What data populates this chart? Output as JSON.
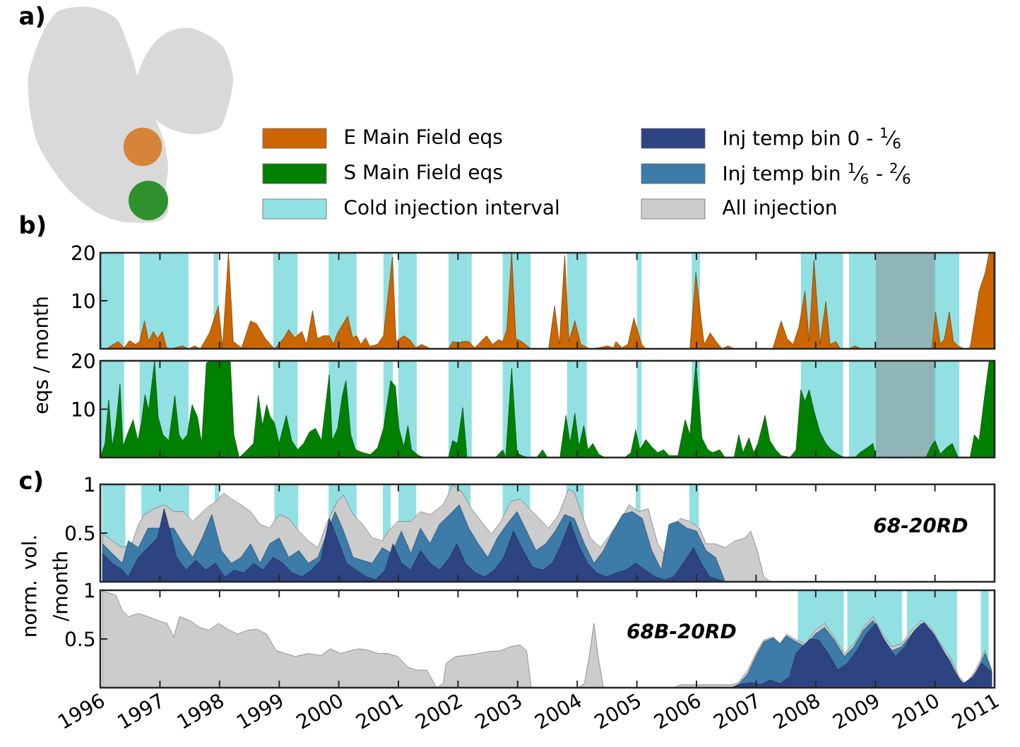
{
  "chart_data": [
    {
      "type": "area",
      "title": "b)",
      "ylabel": "eqs / month",
      "annotations": [
        "a)"
      ],
      "xlim": [
        1996,
        2011
      ],
      "xticks": [
        1996,
        1997,
        1998,
        1999,
        2000,
        2001,
        2002,
        2003,
        2004,
        2005,
        2006,
        2007,
        2008,
        2009,
        2010,
        2011
      ],
      "ylim": [
        0,
        20
      ],
      "yticks": [
        10,
        20
      ],
      "tick_labels": "y",
      "legend": "top",
      "bands": [
        {
          "axis": "x",
          "from": 1996.0,
          "to": 1996.4,
          "color": "#92e0e2"
        },
        {
          "axis": "x",
          "from": 1996.66,
          "to": 1997.48,
          "color": "#92e0e2"
        },
        {
          "axis": "x",
          "from": 1997.9,
          "to": 1997.98,
          "color": "#92e0e2"
        },
        {
          "axis": "x",
          "from": 1998.9,
          "to": 1999.31,
          "color": "#92e0e2"
        },
        {
          "axis": "x",
          "from": 1999.83,
          "to": 2000.3,
          "color": "#92e0e2"
        },
        {
          "axis": "x",
          "from": 2000.75,
          "to": 2000.91,
          "color": "#92e0e2"
        },
        {
          "axis": "x",
          "from": 2001.0,
          "to": 2001.31,
          "color": "#92e0e2"
        },
        {
          "axis": "x",
          "from": 2001.84,
          "to": 2002.23,
          "color": "#92e0e2"
        },
        {
          "axis": "x",
          "from": 2002.75,
          "to": 2003.22,
          "color": "#92e0e2"
        },
        {
          "axis": "x",
          "from": 2003.83,
          "to": 2004.16,
          "color": "#92e0e2"
        },
        {
          "axis": "x",
          "from": 2005.0,
          "to": 2005.08,
          "color": "#92e0e2"
        },
        {
          "axis": "x",
          "from": 2005.92,
          "to": 2006.06,
          "color": "#92e0e2"
        },
        {
          "axis": "x",
          "from": 2007.75,
          "to": 2008.46,
          "color": "#92e0e2"
        },
        {
          "axis": "x",
          "from": 2008.56,
          "to": 2009.52,
          "color": "#92e0e2"
        },
        {
          "axis": "x",
          "from": 2009.58,
          "to": 2010.41,
          "color": "#92e0e2"
        },
        {
          "axis": "x",
          "from": 2009.01,
          "to": 2010.0,
          "color": "#8fb5b7"
        }
      ],
      "series": [
        {
          "name": "E Main Field eqs",
          "color": "#cc6600",
          "x": [
            1996.0,
            1996.1,
            1996.3,
            1996.4,
            1996.49,
            1996.59,
            1996.66,
            1996.74,
            1996.81,
            1996.89,
            1996.96,
            1997.04,
            1997.11,
            1997.19,
            1997.38,
            1997.48,
            1997.58,
            1997.68,
            1997.83,
            1997.98,
            1998.05,
            1998.15,
            1998.23,
            1998.37,
            1998.52,
            1998.62,
            1998.77,
            1998.92,
            1999.07,
            1999.16,
            1999.26,
            1999.38,
            1999.46,
            1999.56,
            1999.64,
            1999.74,
            1999.84,
            1999.91,
            1999.98,
            2000.15,
            2000.23,
            2000.3,
            2000.37,
            2000.45,
            2000.52,
            2000.65,
            2000.75,
            2000.9,
            2000.96,
            2001.09,
            2001.19,
            2001.29,
            2001.39,
            2001.54,
            2001.84,
            2001.91,
            2002.01,
            2002.08,
            2002.18,
            2002.28,
            2002.48,
            2002.58,
            2002.68,
            2002.75,
            2002.82,
            2002.9,
            2002.97,
            2003.07,
            2003.22,
            2003.52,
            2003.62,
            2003.7,
            2003.79,
            2003.86,
            2003.96,
            2004.06,
            2004.21,
            2004.36,
            2004.51,
            2004.61,
            2004.65,
            2004.75,
            2004.85,
            2004.95,
            2005.08,
            2005.15,
            2005.89,
            2005.99,
            2006.08,
            2006.13,
            2006.23,
            2006.33,
            2006.43,
            2006.53,
            2006.63,
            2007.28,
            2007.42,
            2007.52,
            2007.62,
            2007.72,
            2007.82,
            2007.89,
            2007.97,
            2008.07,
            2008.17,
            2008.24,
            2008.34,
            2008.41,
            2008.56,
            2008.66,
            2008.76,
            2009.95,
            2010.01,
            2010.09,
            2010.16,
            2010.24,
            2010.31,
            2010.39,
            2010.49,
            2010.59,
            2010.74,
            2010.84,
            2010.91,
            2010.99
          ],
          "values": [
            0,
            0,
            1.5,
            0.2,
            1.7,
            0.9,
            1.5,
            5.8,
            1.5,
            3.6,
            2.1,
            3.6,
            0.2,
            0,
            0.6,
            0,
            0.6,
            0,
            3.3,
            8.9,
            0.2,
            20,
            1.5,
            0.2,
            5.8,
            5.2,
            2.1,
            0,
            2.1,
            4.0,
            2.3,
            3.6,
            0.9,
            7.9,
            2.1,
            2.7,
            2.7,
            0.9,
            3.3,
            6.8,
            2.3,
            2.7,
            0.9,
            2.3,
            0.5,
            0.9,
            2.7,
            19.1,
            1.5,
            2.7,
            1.9,
            0.2,
            0.9,
            0,
            0,
            1.5,
            1.2,
            1.5,
            1.5,
            0.2,
            2.7,
            0.9,
            1.9,
            1.5,
            4.0,
            20,
            2.1,
            1.5,
            0,
            0,
            8.9,
            0.9,
            19.4,
            1.5,
            5.8,
            0.9,
            0,
            0.2,
            0.6,
            0.2,
            1.5,
            0.2,
            0.9,
            6.4,
            0.9,
            0,
            0,
            15.9,
            5.8,
            0.9,
            3.3,
            1.5,
            0,
            0.6,
            0,
            0,
            5.8,
            2.1,
            0.9,
            4.6,
            12.0,
            1.5,
            18.4,
            0.9,
            9.8,
            0.9,
            1.5,
            0,
            0,
            0.6,
            0,
            0,
            7.7,
            0.9,
            2.1,
            7.7,
            1.5,
            0.6,
            0,
            0.2,
            12.0,
            15.7,
            20,
            20
          ]
        }
      ]
    },
    {
      "type": "area",
      "xlim": [
        1996,
        2011
      ],
      "xticks": [
        1996,
        1997,
        1998,
        1999,
        2000,
        2001,
        2002,
        2003,
        2004,
        2005,
        2006,
        2007,
        2008,
        2009,
        2010,
        2011
      ],
      "ylim": [
        0,
        20
      ],
      "yticks": [
        10,
        20
      ],
      "tick_labels": "y",
      "legend": "top",
      "bands": [
        {
          "axis": "x",
          "from": 1996.0,
          "to": 1996.4,
          "color": "#92e0e2",
          "label": "Cold injection interval"
        },
        {
          "axis": "x",
          "from": 1996.66,
          "to": 1997.48,
          "color": "#92e0e2"
        },
        {
          "axis": "x",
          "from": 1998.9,
          "to": 1999.31,
          "color": "#92e0e2"
        },
        {
          "axis": "x",
          "from": 1999.83,
          "to": 2000.3,
          "color": "#92e0e2"
        },
        {
          "axis": "x",
          "from": 2000.75,
          "to": 2000.91,
          "color": "#92e0e2"
        },
        {
          "axis": "x",
          "from": 2001.0,
          "to": 2001.31,
          "color": "#92e0e2"
        },
        {
          "axis": "x",
          "from": 2001.84,
          "to": 2002.23,
          "color": "#92e0e2"
        },
        {
          "axis": "x",
          "from": 2002.75,
          "to": 2003.22,
          "color": "#92e0e2"
        },
        {
          "axis": "x",
          "from": 2003.83,
          "to": 2004.16,
          "color": "#92e0e2"
        },
        {
          "axis": "x",
          "from": 2005.0,
          "to": 2005.08,
          "color": "#92e0e2"
        },
        {
          "axis": "x",
          "from": 2005.92,
          "to": 2006.06,
          "color": "#92e0e2"
        },
        {
          "axis": "x",
          "from": 2007.75,
          "to": 2008.46,
          "color": "#92e0e2"
        },
        {
          "axis": "x",
          "from": 2008.56,
          "to": 2009.52,
          "color": "#92e0e2"
        },
        {
          "axis": "x",
          "from": 2009.58,
          "to": 2010.41,
          "color": "#92e0e2"
        },
        {
          "axis": "x",
          "from": 2009.01,
          "to": 2010.0,
          "color": "#8fb5b7"
        }
      ],
      "series": [
        {
          "name": "S Main Field eqs",
          "color": "#008000",
          "x": [
            1996.0,
            1996.08,
            1996.14,
            1996.2,
            1996.26,
            1996.33,
            1996.38,
            1996.45,
            1996.55,
            1996.63,
            1996.69,
            1996.75,
            1996.81,
            1996.91,
            1996.97,
            1997.05,
            1997.15,
            1997.25,
            1997.32,
            1997.38,
            1997.46,
            1997.54,
            1997.63,
            1997.7,
            1997.78,
            1997.86,
            1998.18,
            1998.24,
            1998.33,
            1998.42,
            1998.57,
            1998.65,
            1998.72,
            1998.79,
            1998.85,
            1998.92,
            1999.0,
            1999.12,
            1999.21,
            1999.31,
            1999.41,
            1999.51,
            1999.61,
            1999.71,
            1999.84,
            1999.89,
            1999.98,
            2000.06,
            2000.12,
            2000.2,
            2000.28,
            2000.4,
            2000.53,
            2000.65,
            2000.75,
            2000.87,
            2000.95,
            2001.01,
            2001.09,
            2001.16,
            2001.22,
            2001.34,
            2001.44,
            2001.84,
            2001.91,
            2001.99,
            2002.08,
            2002.15,
            2002.63,
            2002.75,
            2002.8,
            2002.9,
            2002.99,
            2003.07,
            2003.17,
            2003.32,
            2003.42,
            2003.5,
            2003.71,
            2003.81,
            2003.88,
            2003.96,
            2004.03,
            2004.11,
            2004.18,
            2004.26,
            2004.36,
            2004.46,
            2004.8,
            2004.9,
            2004.98,
            2005.05,
            2005.15,
            2005.25,
            2005.35,
            2005.45,
            2005.54,
            2005.69,
            2005.81,
            2005.89,
            2005.99,
            2006.09,
            2006.19,
            2006.27,
            2006.39,
            2006.48,
            2006.63,
            2006.71,
            2006.78,
            2006.88,
            2006.96,
            2007.03,
            2007.15,
            2007.23,
            2007.33,
            2007.42,
            2007.57,
            2007.67,
            2007.75,
            2007.82,
            2007.89,
            2007.97,
            2008.07,
            2008.17,
            2008.26,
            2008.38,
            2008.48,
            2008.66,
            2008.74,
            2008.86,
            2008.96,
            2009.01,
            2009.85,
            2009.93,
            2010.0,
            2010.09,
            2010.19,
            2010.29,
            2010.39,
            2010.59,
            2010.66,
            2010.74,
            2010.84,
            2010.91,
            2010.99
          ],
          "values": [
            0,
            2.9,
            11.9,
            2.2,
            6.6,
            15.2,
            2.2,
            4.7,
            7.8,
            3.5,
            7.2,
            13.0,
            9.7,
            19.9,
            8.4,
            4.7,
            3.5,
            12.8,
            4.7,
            3.5,
            4.7,
            10.9,
            8.4,
            2.9,
            19.6,
            20,
            20,
            4.7,
            0,
            1.0,
            2.9,
            12.8,
            6.6,
            10.9,
            8.4,
            7.2,
            2.9,
            8.7,
            3.5,
            1.6,
            2.9,
            5.3,
            6.0,
            3.5,
            17.1,
            3.5,
            6.0,
            12.8,
            15.9,
            4.7,
            1.6,
            1.0,
            0.6,
            2.0,
            6.0,
            15.9,
            14.7,
            6.0,
            2.2,
            6.6,
            1.6,
            0.4,
            0,
            0,
            3.5,
            2.9,
            10.3,
            0,
            0,
            1.6,
            0,
            18.4,
            1.0,
            0.4,
            0,
            0,
            1.6,
            0,
            0,
            8.7,
            2.9,
            9.1,
            2.2,
            6.6,
            1.6,
            2.9,
            0.7,
            0,
            0,
            1.0,
            5.7,
            1.6,
            3.7,
            2.2,
            1.0,
            1.6,
            0.4,
            0.4,
            7.8,
            4.7,
            19.9,
            4.1,
            1.6,
            1.0,
            1.6,
            0,
            0,
            4.7,
            1.0,
            4.1,
            1.0,
            2.9,
            8.7,
            3.5,
            1.6,
            0.4,
            0,
            1.6,
            14.0,
            11.6,
            14.0,
            9.7,
            5.3,
            2.9,
            1.6,
            0.6,
            0,
            0,
            1.0,
            2.0,
            2.9,
            0,
            0,
            2.2,
            3.5,
            0.7,
            2.0,
            2.9,
            0,
            0,
            4.7,
            3.5,
            13.4,
            20,
            20
          ]
        }
      ]
    },
    {
      "type": "area",
      "title": "c)",
      "ylabel": "norm. vol. /month",
      "annotations": [
        "68-20RD"
      ],
      "xlim": [
        1996,
        2011
      ],
      "xticks": [
        1996,
        1997,
        1998,
        1999,
        2000,
        2001,
        2002,
        2003,
        2004,
        2005,
        2006,
        2007,
        2008,
        2009,
        2010,
        2011
      ],
      "ylim": [
        0,
        1
      ],
      "yticks": [
        0.5,
        1
      ],
      "tick_labels": "y",
      "legend": "top",
      "bands": [
        {
          "axis": "x",
          "from": 1996.03,
          "to": 1996.42,
          "color": "#92e0e2"
        },
        {
          "axis": "x",
          "from": 1996.69,
          "to": 1997.49,
          "color": "#92e0e2"
        },
        {
          "axis": "x",
          "from": 1997.92,
          "to": 1998.0,
          "color": "#92e0e2"
        },
        {
          "axis": "x",
          "from": 1998.92,
          "to": 1999.32,
          "color": "#92e0e2"
        },
        {
          "axis": "x",
          "from": 1999.83,
          "to": 2000.3,
          "color": "#92e0e2"
        },
        {
          "axis": "x",
          "from": 2000.74,
          "to": 2000.87,
          "color": "#92e0e2"
        },
        {
          "axis": "x",
          "from": 2001.0,
          "to": 2001.3,
          "color": "#92e0e2"
        },
        {
          "axis": "x",
          "from": 2001.84,
          "to": 2002.21,
          "color": "#92e0e2"
        },
        {
          "axis": "x",
          "from": 2002.75,
          "to": 2003.21,
          "color": "#92e0e2"
        },
        {
          "axis": "x",
          "from": 2003.82,
          "to": 2004.11,
          "color": "#92e0e2"
        },
        {
          "axis": "x",
          "from": 2004.98,
          "to": 2005.06,
          "color": "#92e0e2"
        },
        {
          "axis": "x",
          "from": 2005.88,
          "to": 2006.04,
          "color": "#92e0e2"
        }
      ],
      "series": [
        {
          "name": "Inj temp bin 0 - $^{1}$⁄$_{6}$",
          "color": "#2e4482",
          "x": [
            1996.04,
            1996.2,
            1996.37,
            1996.47,
            1996.64,
            1996.8,
            1996.96,
            1997.07,
            1997.17,
            1997.28,
            1997.44,
            1997.6,
            1997.77,
            1997.93,
            1998.09,
            1998.25,
            1998.41,
            1998.57,
            1998.73,
            1998.9,
            1999.06,
            1999.22,
            1999.38,
            1999.54,
            1999.7,
            1999.84,
            1999.97,
            2000.13,
            2000.29,
            2000.46,
            2000.62,
            2000.78,
            2000.91,
            2001.05,
            2001.21,
            2001.37,
            2001.53,
            2001.69,
            2001.86,
            2001.98,
            2002.12,
            2002.29,
            2002.45,
            2002.61,
            2002.77,
            2002.93,
            2003.09,
            2003.25,
            2003.42,
            2003.58,
            2003.74,
            2003.88,
            2004.01,
            2004.17,
            2004.33,
            2004.49,
            2004.65,
            2004.82,
            2004.98,
            2005.14,
            2005.3,
            2005.46,
            2005.62,
            2005.78,
            2005.95,
            2006.08,
            2006.22,
            2006.38,
            2006.48
          ],
          "values": [
            0.29,
            0.19,
            0.12,
            0.05,
            0.25,
            0.35,
            0.45,
            0.75,
            0.52,
            0.25,
            0.12,
            0.22,
            0.12,
            0.19,
            0.05,
            0.12,
            0.09,
            0.19,
            0.12,
            0.25,
            0.19,
            0.09,
            0.05,
            0.12,
            0.22,
            0.65,
            0.45,
            0.19,
            0.12,
            0.05,
            0.02,
            0.12,
            0.39,
            0.19,
            0.12,
            0.32,
            0.19,
            0.12,
            0.25,
            0.39,
            0.19,
            0.09,
            0.05,
            0.12,
            0.25,
            0.52,
            0.32,
            0.15,
            0.12,
            0.19,
            0.39,
            0.62,
            0.39,
            0.19,
            0.09,
            0.05,
            0.09,
            0.12,
            0.19,
            0.12,
            0.05,
            0.02,
            0.05,
            0.19,
            0.35,
            0.19,
            0.05,
            0.02,
            0
          ]
        },
        {
          "name": "Inj temp bin $^{1}$⁄$_{6}$ - $^{2}$⁄$_{6}$",
          "color": "#3d7ba8",
          "x": [
            1996.04,
            1996.2,
            1996.37,
            1996.47,
            1996.64,
            1996.8,
            1996.96,
            1997.23,
            1997.39,
            1997.55,
            1997.71,
            1997.87,
            1998.03,
            1998.2,
            1998.36,
            1998.52,
            1998.68,
            1998.84,
            1999.0,
            1999.16,
            1999.33,
            1999.49,
            1999.65,
            1999.81,
            1999.94,
            2000.08,
            2000.24,
            2000.4,
            2000.56,
            2000.73,
            2000.89,
            2001.05,
            2001.21,
            2001.37,
            2001.53,
            2001.69,
            2001.86,
            2002.02,
            2002.18,
            2002.34,
            2002.5,
            2002.66,
            2002.82,
            2002.99,
            2003.15,
            2003.31,
            2003.47,
            2003.63,
            2003.79,
            2003.95,
            2004.12,
            2004.28,
            2004.44,
            2004.6,
            2004.76,
            2004.92,
            2005.09,
            2005.25,
            2005.41,
            2005.54,
            2005.68,
            2005.84,
            2006.0,
            2006.16,
            2006.32,
            2006.48
          ],
          "values": [
            0.39,
            0.29,
            0.19,
            0.42,
            0.35,
            0.55,
            null,
            0.55,
            0.39,
            0.25,
            0.45,
            0.69,
            0.32,
            0.19,
            0.25,
            0.39,
            0.19,
            0.39,
            0.45,
            0.25,
            0.32,
            0.19,
            0.25,
            null,
            0.72,
            0.52,
            0.25,
            0.22,
            0.19,
            0.35,
            0.29,
            0.52,
            0.29,
            0.55,
            0.39,
            0.59,
            0.69,
            0.79,
            0.55,
            0.39,
            0.25,
            0.45,
            0.59,
            0.72,
            0.52,
            0.32,
            0.39,
            0.52,
            0.69,
            0.65,
            0.39,
            0.19,
            0.32,
            0.52,
            0.69,
            0.72,
            0.65,
            0.32,
            0.12,
            0.59,
            0.62,
            0.55,
            0.52,
            0.32,
            0.25,
            0
          ]
        },
        {
          "name": "All injection",
          "color": "#cccccc",
          "x": [
            1996.04,
            1996.2,
            1996.37,
            1996.53,
            1996.64,
            1996.74,
            1996.9,
            1997.07,
            1997.23,
            1997.39,
            1997.55,
            1997.77,
            1997.93,
            1998.07,
            1998.2,
            1998.36,
            1998.52,
            1998.68,
            1998.84,
            1999.0,
            1999.16,
            1999.33,
            1999.49,
            1999.65,
            1999.81,
            1999.97,
            2000.08,
            2000.24,
            2000.4,
            2000.56,
            2000.73,
            2000.83,
            2000.99,
            2001.21,
            2001.37,
            2001.53,
            2001.75,
            2001.91,
            2002.07,
            2002.23,
            2002.39,
            2002.56,
            2002.72,
            2002.88,
            2003.04,
            2003.2,
            2003.36,
            2003.52,
            2003.69,
            2003.85,
            2003.95,
            2004.06,
            2004.22,
            2004.39,
            2004.55,
            2004.71,
            2004.87,
            2005.03,
            2005.19,
            2005.35,
            2005.46,
            2005.57,
            2005.73,
            2005.89,
            2006.05,
            2006.16,
            2006.32,
            2006.48,
            2006.65,
            2006.81,
            2006.91,
            2007.02,
            2007.13,
            2007.24
          ],
          "values": [
            0.49,
            0.42,
            0.35,
            0.39,
            0.59,
            0.69,
            0.75,
            0.79,
            0.72,
            0.72,
            0.62,
            0.75,
            0.82,
            0.91,
            0.85,
            0.79,
            0.72,
            0.59,
            0.55,
            0.69,
            0.65,
            0.52,
            0.42,
            0.35,
            0.62,
            0.82,
            0.89,
            0.69,
            0.59,
            0.45,
            0.42,
            0.52,
            0.62,
            0.62,
            0.72,
            0.69,
            0.79,
            0.99,
            0.92,
            0.75,
            0.62,
            0.49,
            0.62,
            0.82,
            0.85,
            0.75,
            0.65,
            0.55,
            0.69,
            0.95,
            0.92,
            0.72,
            0.45,
            0.35,
            null,
            0.62,
            0.79,
            0.72,
            0.75,
            0.39,
            0.29,
            0.55,
            0.65,
            0.62,
            0.55,
            0.39,
            0.39,
            0.35,
            0.42,
            0.45,
            0.52,
            0.32,
            0.05,
            0
          ]
        }
      ]
    },
    {
      "type": "area",
      "annotations": [
        "68B-20RD"
      ],
      "xlim": [
        1996,
        2011
      ],
      "xticks": [
        1996,
        1997,
        1998,
        1999,
        2000,
        2001,
        2002,
        2003,
        2004,
        2005,
        2006,
        2007,
        2008,
        2009,
        2010,
        2011
      ],
      "ylim": [
        0,
        1
      ],
      "yticks": [
        0.5,
        1
      ],
      "bands": [
        {
          "axis": "x",
          "from": 2007.7,
          "to": 2008.47,
          "color": "#92e0e2"
        },
        {
          "axis": "x",
          "from": 2008.53,
          "to": 2009.45,
          "color": "#92e0e2"
        },
        {
          "axis": "x",
          "from": 2009.53,
          "to": 2010.37,
          "color": "#92e0e2"
        },
        {
          "axis": "x",
          "from": 2010.77,
          "to": 2010.9,
          "color": "#92e0e2"
        }
      ],
      "series": [
        {
          "color": "#2e4482",
          "x": [
            2006.59,
            2006.7,
            2006.91,
            2007.08,
            2007.24,
            2007.4,
            2007.56,
            2007.67,
            2007.77,
            2007.91,
            2008.05,
            2008.21,
            2008.37,
            2008.53,
            2008.69,
            2008.85,
            2009.01,
            2009.18,
            2009.34,
            2009.5,
            2009.66,
            2009.82,
            2009.98,
            2010.14,
            2010.31,
            2010.47,
            2010.63,
            2010.79,
            2010.95
          ],
          "values": [
            0,
            0.03,
            0.05,
            0.03,
            0.08,
            0.04,
            0.11,
            0.35,
            0.42,
            0.5,
            0.49,
            0.35,
            0.18,
            0.25,
            0.38,
            0.55,
            0.66,
            0.45,
            0.32,
            0.42,
            0.59,
            0.67,
            0.55,
            0.38,
            0.18,
            0.04,
            0.11,
            0.25,
            0.16
          ]
        },
        {
          "color": "#3d7ba8",
          "x": [
            2006.59,
            2006.7,
            2006.86,
            2007.02,
            2007.13,
            2007.29,
            2007.4,
            2007.51,
            2007.67,
            2007.83,
            2007.99,
            2008.15,
            2008.31,
            2008.48,
            2008.64,
            2008.8,
            2008.96,
            2009.12,
            2009.28,
            2009.44,
            2009.61,
            2009.77,
            2009.93,
            2010.09,
            2010.25,
            2010.41,
            2010.52,
            2010.68,
            2010.84,
            2010.95
          ],
          "values": [
            0,
            0.03,
            0.14,
            0.35,
            0.47,
            0.51,
            0.45,
            0.53,
            0.47,
            0.42,
            0.55,
            0.62,
            0.49,
            0.32,
            0.42,
            0.59,
            0.69,
            0.52,
            0.38,
            0.42,
            0.55,
            0.66,
            0.59,
            0.42,
            0.28,
            0.08,
            0.03,
            0.14,
            0.35,
            0.18
          ]
        },
        {
          "color": "#cccccc",
          "x": [
            1996.04,
            1996.15,
            1996.26,
            1996.37,
            1996.47,
            1996.64,
            1996.8,
            1996.96,
            1997.12,
            1997.23,
            1997.33,
            1997.5,
            1997.66,
            1997.82,
            1997.98,
            1998.14,
            1998.3,
            1998.47,
            1998.63,
            1998.79,
            1998.95,
            1999.11,
            1999.27,
            1999.49,
            1999.7,
            1999.86,
            2000.03,
            2000.19,
            2000.35,
            2000.51,
            2000.67,
            2000.83,
            2000.99,
            2001.16,
            2001.32,
            2001.48,
            2001.64,
            2001.75,
            2001.8,
            2001.96,
            2002.12,
            2002.34,
            2002.5,
            2002.72,
            2002.88,
            2003.04,
            2003.15,
            2003.23,
            2004.01,
            2004.12,
            2004.2,
            2004.28,
            2004.35,
            2004.44,
            2005.62,
            2005.73,
            2006.59,
            2006.7,
            2006.86,
            2007.02,
            2007.13,
            2007.29,
            2007.4,
            2007.51,
            2007.67,
            2007.83,
            2007.99,
            2008.15,
            2008.31,
            2008.48,
            2008.64,
            2008.8,
            2008.96,
            2009.12,
            2009.28,
            2009.44,
            2009.61,
            2009.77,
            2009.93,
            2010.09,
            2010.25,
            2010.41,
            2010.52,
            2010.68,
            2010.84,
            2010.95
          ],
          "values": [
            0.99,
            0.97,
            0.95,
            0.79,
            0.73,
            0.76,
            0.73,
            0.69,
            0.66,
            0.52,
            0.73,
            0.69,
            0.62,
            0.59,
            0.66,
            0.6,
            0.55,
            0.59,
            0.6,
            0.55,
            0.38,
            0.35,
            0.32,
            0.35,
            0.33,
            0.4,
            0.35,
            0.38,
            0.4,
            0.38,
            0.35,
            0.35,
            0.32,
            0.21,
            0.18,
            0.18,
            0,
            0.04,
            0.25,
            0.32,
            0.33,
            0.35,
            0.37,
            0.38,
            0.42,
            0.44,
            0.38,
            0,
            0,
            0.04,
            0.32,
            0.66,
            0.32,
            0,
            0,
            0.03,
            0.03,
            0.05,
            0.18,
            0.38,
            0.49,
            0.52,
            0.45,
            0.55,
            0.49,
            0.45,
            0.59,
            0.66,
            0.52,
            0.35,
            0.45,
            0.62,
            0.73,
            0.55,
            0.42,
            0.45,
            0.59,
            0.69,
            0.62,
            0.45,
            0.32,
            0.11,
            0.04,
            0.18,
            0.38,
            0.18
          ]
        }
      ]
    }
  ]
}
